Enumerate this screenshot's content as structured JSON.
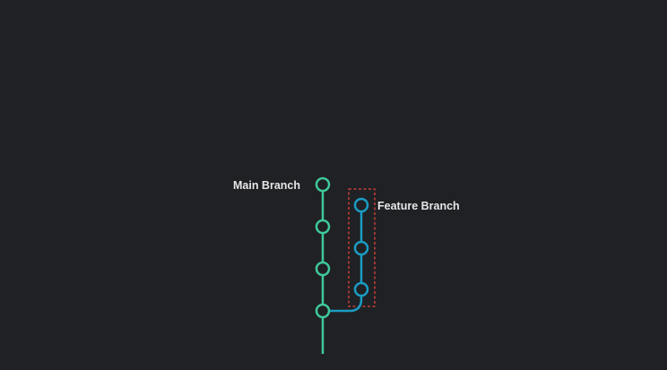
{
  "diagram": {
    "main_branch": {
      "label": "Main Branch",
      "color": "#3ec99a",
      "commit_count": 4
    },
    "feature_branch": {
      "label": "Feature Branch",
      "color": "#1b9cc3",
      "commit_count": 3,
      "highlight_box_color": "#e0453a"
    },
    "background": "#202124"
  }
}
